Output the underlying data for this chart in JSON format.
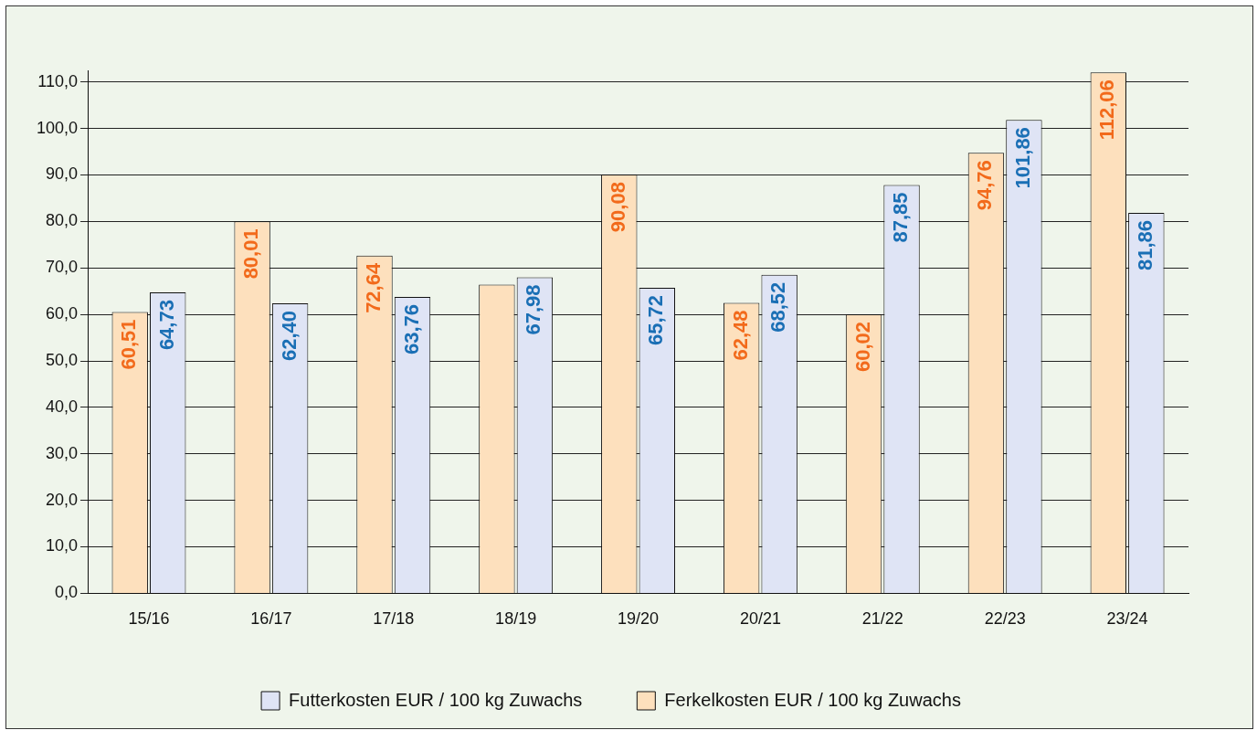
{
  "chart_data": {
    "type": "bar",
    "categories": [
      "15/16",
      "16/17",
      "17/18",
      "18/19",
      "19/20",
      "20/21",
      "21/22",
      "22/23",
      "23/24"
    ],
    "series": [
      {
        "name": "Ferkelkosten EUR / 100 kg Zuwachs",
        "color": "#fde0bd",
        "values": [
          60.51,
          80.01,
          72.64,
          66.4,
          90.08,
          62.48,
          60.02,
          94.76,
          112.06
        ],
        "value_labels": [
          "60,51",
          "80,01",
          "72,64",
          null,
          "90,08",
          "62,48",
          "60,02",
          "94,76",
          "112,06"
        ]
      },
      {
        "name": "Futterkosten EUR / 100 kg Zuwachs",
        "color": "#dfe4f5",
        "values": [
          64.73,
          62.4,
          63.76,
          67.98,
          65.72,
          68.52,
          87.85,
          101.86,
          81.86
        ],
        "value_labels": [
          "64,73",
          "62,40",
          "63,76",
          "67,98",
          "65,72",
          "68,52",
          "87,85",
          "101,86",
          "81,86"
        ]
      }
    ],
    "ylim": [
      0,
      112.5
    ],
    "yticks": [
      {
        "value": 0,
        "label": "0,0"
      },
      {
        "value": 10,
        "label": "10,0"
      },
      {
        "value": 20,
        "label": "20,0"
      },
      {
        "value": 30,
        "label": "30,0"
      },
      {
        "value": 40,
        "label": "40,0"
      },
      {
        "value": 50,
        "label": "50,0"
      },
      {
        "value": 60,
        "label": "60,0"
      },
      {
        "value": 70,
        "label": "70,0"
      },
      {
        "value": 80,
        "label": "80,0"
      },
      {
        "value": 90,
        "label": "90,0"
      },
      {
        "value": 100,
        "label": "100,0"
      },
      {
        "value": 110,
        "label": "110,0"
      }
    ],
    "grid": "y",
    "legend": "bottom"
  }
}
